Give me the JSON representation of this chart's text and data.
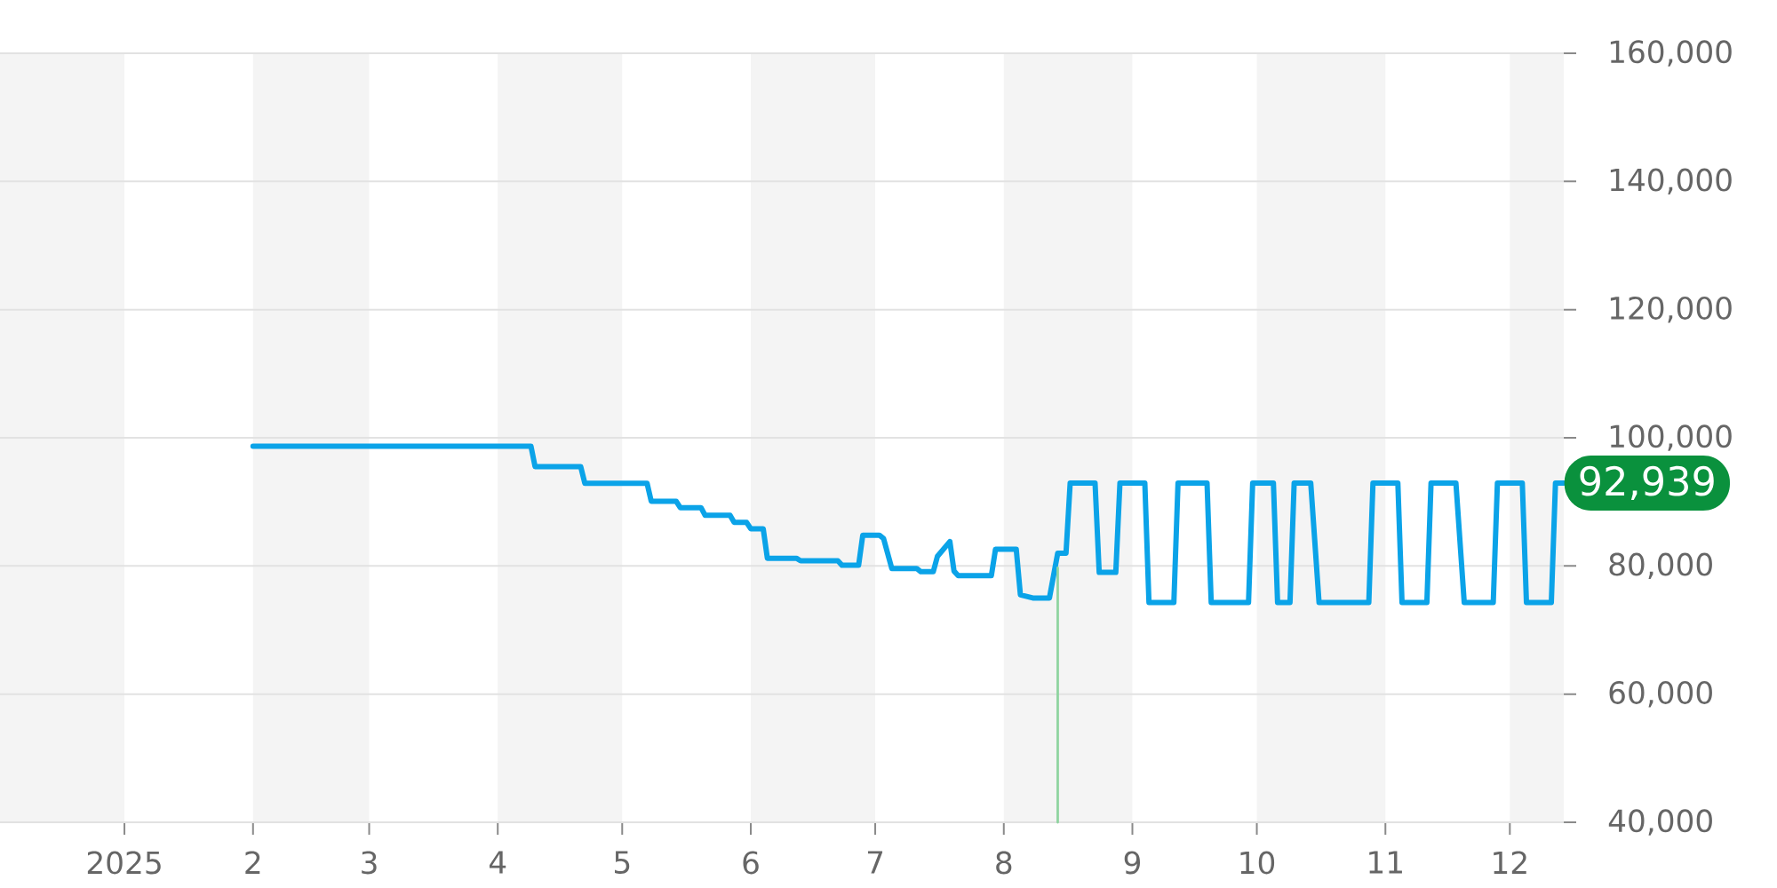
{
  "chart_data": {
    "type": "line",
    "x": [
      "2025-02-01",
      "2025-04-09",
      "2025-04-10",
      "2025-04-21",
      "2025-04-22",
      "2025-05-07",
      "2025-05-08",
      "2025-05-14",
      "2025-05-15",
      "2025-05-20",
      "2025-05-21",
      "2025-05-27",
      "2025-05-28",
      "2025-05-31",
      "2025-06-01",
      "2025-06-04",
      "2025-06-05",
      "2025-06-12",
      "2025-06-13",
      "2025-06-22",
      "2025-06-23",
      "2025-06-27",
      "2025-06-28",
      "2025-07-02",
      "2025-07-03",
      "2025-07-05",
      "2025-07-11",
      "2025-07-12",
      "2025-07-15",
      "2025-07-16",
      "2025-07-19",
      "2025-07-20",
      "2025-07-21",
      "2025-07-29",
      "2025-07-30",
      "2025-08-04",
      "2025-08-05",
      "2025-08-08",
      "2025-08-12",
      "2025-08-14",
      "2025-08-16",
      "2025-08-17",
      "2025-08-23",
      "2025-08-24",
      "2025-08-28",
      "2025-08-29",
      "2025-09-04",
      "2025-09-05",
      "2025-09-11",
      "2025-09-12",
      "2025-09-19",
      "2025-09-20",
      "2025-09-29",
      "2025-09-30",
      "2025-10-05",
      "2025-10-06",
      "2025-10-09",
      "2025-10-10",
      "2025-10-14",
      "2025-10-16",
      "2025-10-28",
      "2025-10-29",
      "2025-11-04",
      "2025-11-05",
      "2025-11-11",
      "2025-11-12",
      "2025-11-18",
      "2025-11-20",
      "2025-11-27",
      "2025-11-28",
      "2025-12-04",
      "2025-12-05",
      "2025-12-11",
      "2025-12-12",
      "2025-12-14"
    ],
    "series": [
      {
        "color": "#0ba3e8",
        "values": [
          98700,
          98700,
          95500,
          95500,
          92900,
          92900,
          90100,
          90100,
          89100,
          89100,
          87900,
          87900,
          86800,
          86800,
          85800,
          85800,
          81200,
          81200,
          80800,
          80800,
          80100,
          80100,
          84800,
          84800,
          84300,
          79600,
          79600,
          79100,
          79100,
          81500,
          83800,
          79200,
          78500,
          78500,
          82600,
          82600,
          75500,
          75000,
          75000,
          82000,
          82000,
          92939,
          92939,
          79000,
          79000,
          92939,
          92939,
          74300,
          74300,
          92939,
          92939,
          74300,
          74300,
          92939,
          92939,
          74300,
          74300,
          92939,
          92939,
          74300,
          74300,
          92939,
          92939,
          74300,
          74300,
          92939,
          92939,
          74300,
          74300,
          92939,
          92939,
          74300,
          74300,
          92939,
          92939
        ]
      },
      {
        "color": "#8fd4a0",
        "x": [
          "2025-08-14",
          "2025-08-14"
        ],
        "values": [
          40000,
          79700
        ]
      }
    ],
    "xlim": [
      "2024-12-02",
      "2025-12-14"
    ],
    "ylim": [
      40000,
      160000
    ],
    "xticks": [
      {
        "value": "2025-01-01",
        "label": "2025"
      },
      {
        "value": "2025-02-01",
        "label": "2"
      },
      {
        "value": "2025-03-01",
        "label": "3"
      },
      {
        "value": "2025-04-01",
        "label": "4"
      },
      {
        "value": "2025-05-01",
        "label": "5"
      },
      {
        "value": "2025-06-01",
        "label": "6"
      },
      {
        "value": "2025-07-01",
        "label": "7"
      },
      {
        "value": "2025-08-01",
        "label": "8"
      },
      {
        "value": "2025-09-01",
        "label": "9"
      },
      {
        "value": "2025-10-01",
        "label": "10"
      },
      {
        "value": "2025-11-01",
        "label": "11"
      },
      {
        "value": "2025-12-01",
        "label": "12"
      }
    ],
    "yticks": [
      {
        "value": 40000,
        "label": "40,000"
      },
      {
        "value": 60000,
        "label": "60,000"
      },
      {
        "value": 80000,
        "label": "80,000"
      },
      {
        "value": 100000,
        "label": "100,000"
      },
      {
        "value": 120000,
        "label": "120,000"
      },
      {
        "value": 140000,
        "label": "140,000"
      },
      {
        "value": 160000,
        "label": "160,000"
      }
    ],
    "grid": "y",
    "bands": [
      {
        "axis": "x",
        "from": "2024-12-02",
        "to": "2025-01-01",
        "color": "#f4f4f4"
      },
      {
        "axis": "x",
        "from": "2025-02-01",
        "to": "2025-03-01",
        "color": "#f4f4f4"
      },
      {
        "axis": "x",
        "from": "2025-04-01",
        "to": "2025-05-01",
        "color": "#f4f4f4"
      },
      {
        "axis": "x",
        "from": "2025-06-01",
        "to": "2025-07-01",
        "color": "#f4f4f4"
      },
      {
        "axis": "x",
        "from": "2025-08-01",
        "to": "2025-09-01",
        "color": "#f4f4f4"
      },
      {
        "axis": "x",
        "from": "2025-10-01",
        "to": "2025-11-01",
        "color": "#f4f4f4"
      },
      {
        "axis": "x",
        "from": "2025-12-01",
        "to": "2025-12-14",
        "color": "#f4f4f4"
      }
    ],
    "annotations": [
      {
        "text": "92,939",
        "x": "2025-12-14",
        "y": 92939
      }
    ]
  }
}
